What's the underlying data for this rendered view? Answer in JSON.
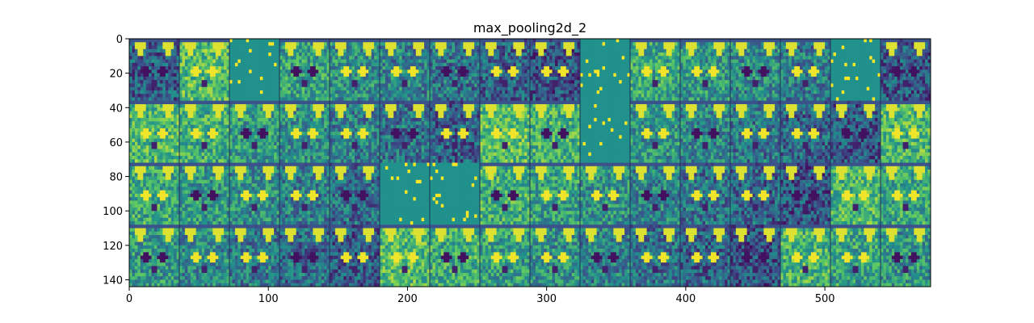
{
  "chart_data": {
    "type": "heatmap",
    "title": "max_pooling2d_2",
    "xlabel": "",
    "ylabel": "",
    "xlim": [
      0,
      576
    ],
    "ylim": [
      144,
      0
    ],
    "grid": false,
    "colormap": "viridis",
    "tile_grid": {
      "rows": 4,
      "cols": 16,
      "tile_size": 36
    },
    "x_ticks": [
      0,
      100,
      200,
      300,
      400,
      500
    ],
    "y_ticks": [
      0,
      20,
      40,
      60,
      80,
      100,
      120,
      140
    ],
    "x_tick_labels": [
      "0",
      "100",
      "200",
      "300",
      "400",
      "500"
    ],
    "y_tick_labels": [
      "0",
      "20",
      "40",
      "60",
      "80",
      "100",
      "120",
      "140"
    ]
  },
  "colors": {
    "dark": "#3b528b",
    "mid": "#21918c",
    "light": "#5ec962",
    "bright": "#fde725",
    "deep": "#440154"
  }
}
